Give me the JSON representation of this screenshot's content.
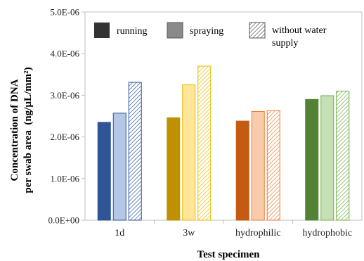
{
  "chart_data": {
    "type": "bar",
    "title": "",
    "xlabel": "Test specimen",
    "ylabel_line1": "Concentration of DNA",
    "ylabel_line2": "per swab area  (ng/µL/mm²)",
    "categories": [
      "1d",
      "3w",
      "hydrophilic",
      "hydrophobic"
    ],
    "ylim": [
      0,
      5e-06
    ],
    "yticks": [
      0,
      1e-06,
      2e-06,
      3e-06,
      4e-06,
      5e-06
    ],
    "ytick_labels": [
      "0.0E+00",
      "1.0E-06",
      "2.0E-06",
      "3.0E-06",
      "4.0E-06",
      "5.0E-06"
    ],
    "grid": false,
    "legend_position": "top",
    "series": [
      {
        "name": "running",
        "pattern": "solid",
        "values": [
          2.35e-06,
          2.46e-06,
          2.38e-06,
          2.9e-06
        ]
      },
      {
        "name": "spraying",
        "pattern": "light",
        "values": [
          2.57e-06,
          3.25e-06,
          2.61e-06,
          2.99e-06
        ]
      },
      {
        "name": "without water supply",
        "pattern": "hatched",
        "values": [
          3.31e-06,
          3.7e-06,
          2.63e-06,
          3.1e-06
        ]
      }
    ],
    "legend_labels": [
      "running",
      "spraying",
      "without water",
      "supply"
    ],
    "legend_colors": [
      "#333333",
      "#8a8a8a",
      "#aaaaaa"
    ],
    "category_colors": {
      "dark": [
        "#2f5597",
        "#bf9000",
        "#c55a11",
        "#548235"
      ],
      "light": [
        "#b4c7e7",
        "#ffe699",
        "#f8cbad",
        "#c5e0b4"
      ],
      "stroke": [
        "#2f5597",
        "#e6b800",
        "#ed7d31",
        "#70ad47"
      ]
    }
  }
}
